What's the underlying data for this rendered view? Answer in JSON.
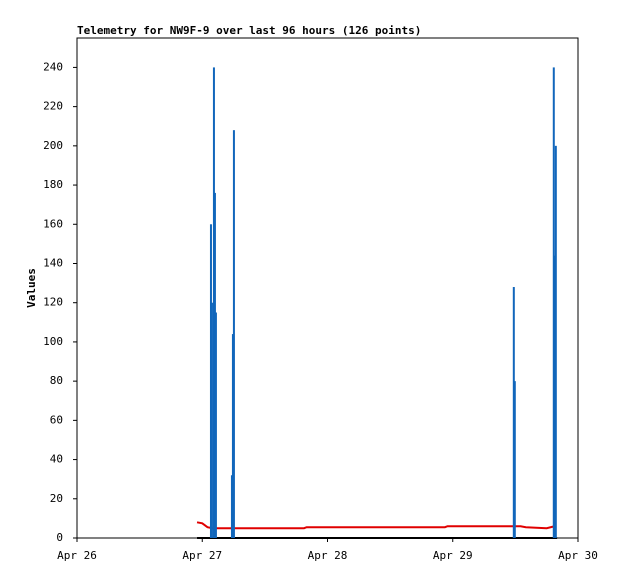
{
  "chart_data": {
    "type": "combo",
    "title": "Telemetry for NW9F-9 over last 96 hours (126 points)",
    "y_label": "Values",
    "xlim": [
      0,
      96
    ],
    "xticks": [
      {
        "value": 0,
        "label": "Apr 26"
      },
      {
        "value": 24,
        "label": "Apr 27"
      },
      {
        "value": 48,
        "label": "Apr 28"
      },
      {
        "value": 72,
        "label": "Apr 29"
      },
      {
        "value": 96,
        "label": "Apr 30"
      }
    ],
    "ylim": [
      0,
      255
    ],
    "yticks": [
      0,
      20,
      40,
      60,
      80,
      100,
      120,
      140,
      160,
      180,
      200,
      220,
      240
    ],
    "series": [
      {
        "type": "line",
        "color": "#000000",
        "x": [
          23,
          92
        ],
        "values": [
          0,
          0
        ]
      },
      {
        "type": "line",
        "color": "#e00000",
        "x": [
          23,
          24,
          25,
          26,
          43.5,
          44,
          70.5,
          71,
          85,
          86,
          90,
          91.5
        ],
        "values": [
          8,
          7.5,
          5.5,
          5,
          5,
          5.5,
          5.5,
          6,
          6,
          5.5,
          5,
          6
        ]
      },
      {
        "type": "bar",
        "color": "#1166bb",
        "x": [
          25.67,
          25.86,
          26.24,
          26.43,
          26.62,
          29.69,
          29.88,
          30.07,
          83.7,
          83.89,
          91.36,
          91.56,
          91.75
        ],
        "values": [
          160,
          120,
          240,
          176,
          115,
          32,
          104,
          208,
          128,
          80,
          240,
          144,
          200
        ]
      }
    ]
  }
}
